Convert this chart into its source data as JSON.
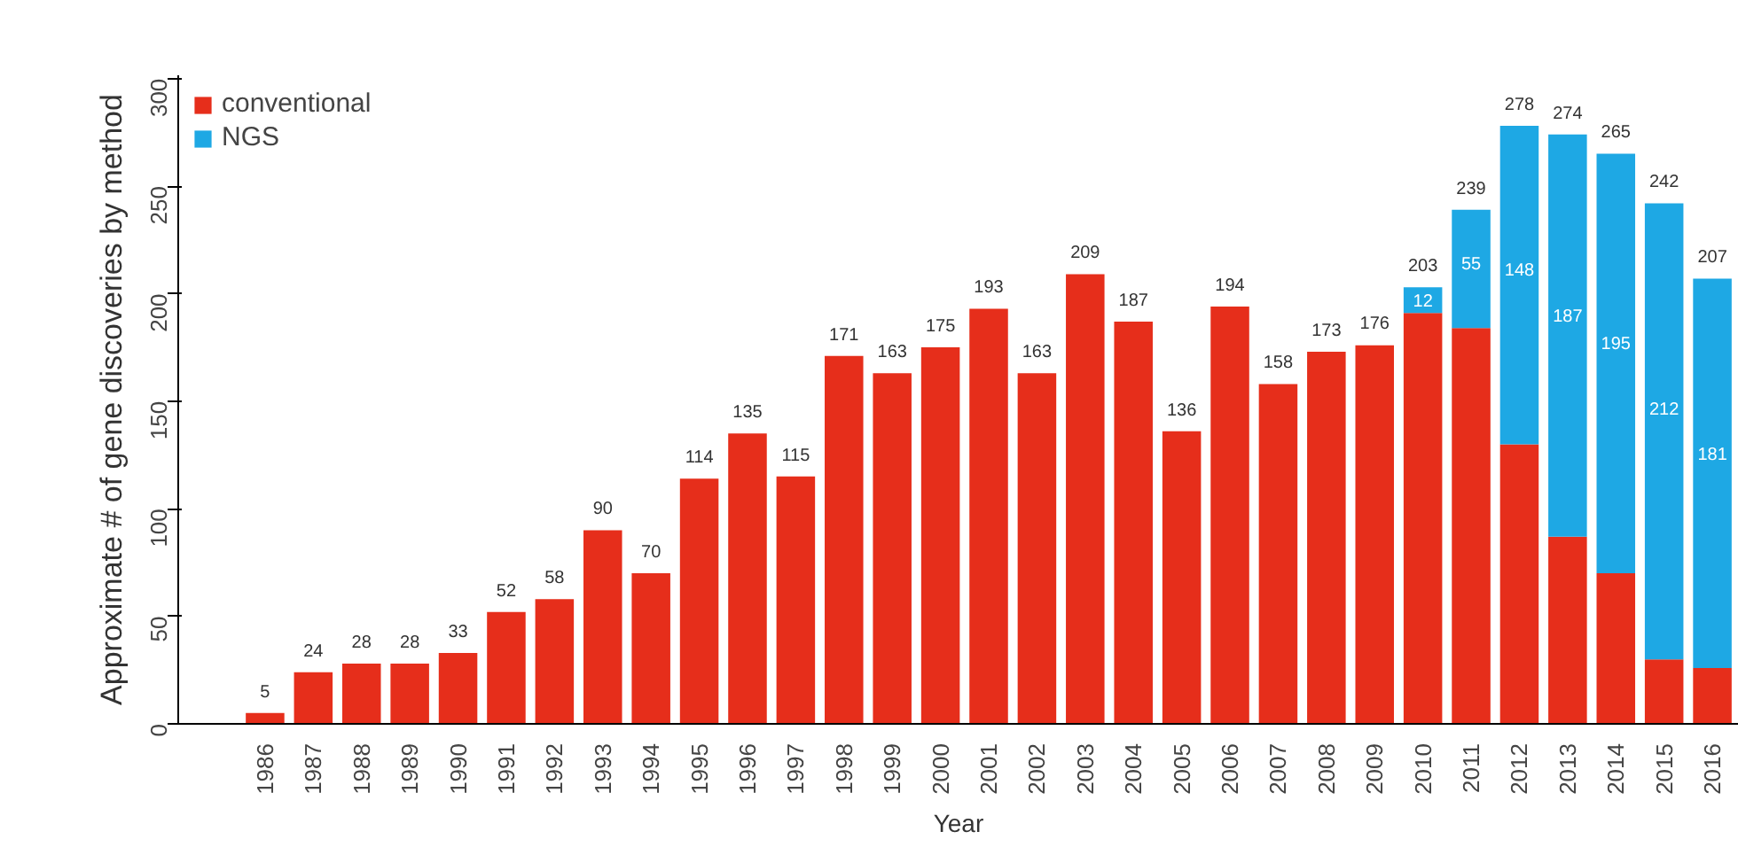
{
  "chart_data": {
    "type": "bar",
    "stacked": true,
    "xlabel": "Year",
    "ylabel": "Approximate # of gene discoveries by method",
    "categories": [
      "1986",
      "1987",
      "1988",
      "1989",
      "1990",
      "1991",
      "1992",
      "1993",
      "1994",
      "1995",
      "1996",
      "1997",
      "1998",
      "1999",
      "2000",
      "2001",
      "2002",
      "2003",
      "2004",
      "2005",
      "2006",
      "2007",
      "2008",
      "2009",
      "2010",
      "2011",
      "2012",
      "2013",
      "2014",
      "2015",
      "2016"
    ],
    "series": [
      {
        "name": "conventional",
        "color": "#e62e1b",
        "values": [
          5,
          24,
          28,
          28,
          33,
          52,
          58,
          90,
          70,
          114,
          135,
          115,
          171,
          163,
          175,
          193,
          163,
          209,
          187,
          136,
          194,
          158,
          173,
          176,
          191,
          184,
          130,
          87,
          70,
          30,
          26
        ]
      },
      {
        "name": "NGS",
        "color": "#1ea8e4",
        "values": [
          null,
          null,
          null,
          null,
          null,
          null,
          null,
          null,
          null,
          null,
          null,
          null,
          null,
          null,
          null,
          null,
          null,
          null,
          null,
          null,
          null,
          null,
          null,
          null,
          12,
          55,
          148,
          187,
          195,
          212,
          181
        ],
        "value_labels": [
          null,
          null,
          null,
          null,
          null,
          null,
          null,
          null,
          null,
          null,
          null,
          null,
          null,
          null,
          null,
          null,
          null,
          null,
          null,
          null,
          null,
          null,
          null,
          null,
          "12",
          "55",
          "148",
          "187",
          "195",
          "212",
          "181"
        ]
      }
    ],
    "totals": [
      "5",
      "24",
      "28",
      "28",
      "33",
      "52",
      "58",
      "90",
      "70",
      "114",
      "135",
      "115",
      "171",
      "163",
      "175",
      "193",
      "163",
      "209",
      "187",
      "136",
      "194",
      "158",
      "173",
      "176",
      "203",
      "239",
      "278",
      "274",
      "265",
      "242",
      "207"
    ],
    "ylim": [
      0,
      300
    ],
    "yticks": [
      0,
      50,
      100,
      150,
      200,
      250,
      300
    ],
    "grid": false,
    "legend": "top left"
  }
}
